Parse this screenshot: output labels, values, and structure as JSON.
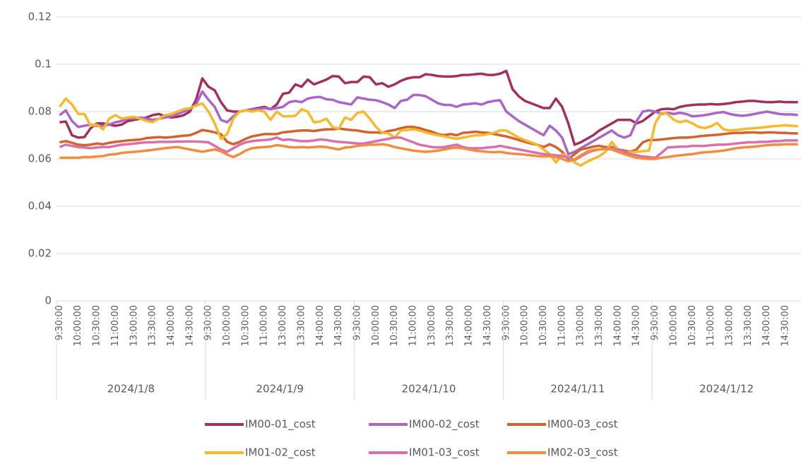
{
  "chart_data": {
    "type": "line",
    "categories": [
      "9:30:00",
      null,
      null,
      "10:00:00",
      null,
      null,
      "10:30:00",
      null,
      null,
      "11:00:00",
      null,
      null,
      "13:00:00",
      null,
      null,
      "13:30:00",
      null,
      null,
      "14:00:00",
      null,
      null,
      "14:30:00",
      null,
      null,
      "9:30:00",
      null,
      null,
      "10:00:00",
      null,
      null,
      "10:30:00",
      null,
      null,
      "11:00:00",
      null,
      null,
      "13:00:00",
      null,
      null,
      "13:30:00",
      null,
      null,
      "14:00:00",
      null,
      null,
      "14:30:00",
      null,
      null,
      "9:30:00",
      null,
      null,
      "10:00:00",
      null,
      null,
      "10:30:00",
      null,
      null,
      "11:00:00",
      null,
      null,
      "13:00:00",
      null,
      null,
      "13:30:00",
      null,
      null,
      "14:00:00",
      null,
      null,
      "14:30:00",
      null,
      null,
      "9:30:00",
      null,
      null,
      "10:00:00",
      null,
      null,
      "10:30:00",
      null,
      null,
      "11:00:00",
      null,
      null,
      "13:00:00",
      null,
      null,
      "13:30:00",
      null,
      null,
      "14:00:00",
      null,
      null,
      "14:30:00",
      null,
      null,
      "9:30:00",
      null,
      null,
      "10:00:00",
      null,
      null,
      "10:30:00",
      null,
      null,
      "11:00:00",
      null,
      null,
      "13:00:00",
      null,
      null,
      "13:30:00",
      null,
      null,
      "14:00:00",
      null,
      null,
      "14:30:00",
      null,
      null
    ],
    "groups": [
      "2024/1/8",
      "2024/1/9",
      "2024/1/10",
      "2024/1/11",
      "2024/1/12"
    ],
    "ylim": [
      0,
      0.12
    ],
    "yticks": [
      0,
      0.02,
      0.04,
      0.06,
      0.08,
      0.1,
      0.12
    ],
    "grid": true,
    "legend": "bottom",
    "series": [
      {
        "name": "IM00-01_cost",
        "color": "#a3305a",
        "values": [
          0.0755,
          0.0758,
          0.07,
          0.069,
          0.0692,
          0.073,
          0.075,
          0.075,
          0.0745,
          0.074,
          0.0745,
          0.076,
          0.0765,
          0.077,
          0.0775,
          0.0785,
          0.079,
          0.078,
          0.0775,
          0.0778,
          0.0785,
          0.08,
          0.085,
          0.094,
          0.0905,
          0.089,
          0.084,
          0.0805,
          0.08,
          0.08,
          0.0805,
          0.081,
          0.0815,
          0.082,
          0.081,
          0.083,
          0.0875,
          0.088,
          0.0915,
          0.0905,
          0.0935,
          0.0915,
          0.0925,
          0.0935,
          0.095,
          0.0948,
          0.092,
          0.0925,
          0.0925,
          0.0948,
          0.0945,
          0.0915,
          0.092,
          0.0905,
          0.0915,
          0.093,
          0.094,
          0.0945,
          0.0945,
          0.0958,
          0.0955,
          0.095,
          0.0948,
          0.0948,
          0.095,
          0.0955,
          0.0955,
          0.0958,
          0.096,
          0.0955,
          0.0955,
          0.096,
          0.0972,
          0.0895,
          0.0865,
          0.0845,
          0.0835,
          0.0825,
          0.0815,
          0.0815,
          0.0855,
          0.082,
          0.075,
          0.066,
          0.067,
          0.0685,
          0.07,
          0.072,
          0.0735,
          0.075,
          0.0765,
          0.0765,
          0.0765,
          0.075,
          0.076,
          0.078,
          0.08,
          0.081,
          0.0812,
          0.081,
          0.082,
          0.0825,
          0.0828,
          0.083,
          0.083,
          0.0832,
          0.083,
          0.0832,
          0.0835,
          0.084,
          0.0842,
          0.0845,
          0.0845,
          0.0842,
          0.084,
          0.084,
          0.0842,
          0.084,
          0.084,
          0.084
        ]
      },
      {
        "name": "IM00-02_cost",
        "color": "#a866c8",
        "values": [
          0.0785,
          0.0805,
          0.076,
          0.0735,
          0.074,
          0.0745,
          0.074,
          0.074,
          0.0745,
          0.0755,
          0.076,
          0.077,
          0.077,
          0.0775,
          0.077,
          0.0765,
          0.077,
          0.0775,
          0.078,
          0.079,
          0.08,
          0.081,
          0.083,
          0.0885,
          0.085,
          0.082,
          0.0765,
          0.0755,
          0.078,
          0.08,
          0.0805,
          0.081,
          0.081,
          0.0815,
          0.081,
          0.0815,
          0.082,
          0.084,
          0.0845,
          0.084,
          0.0855,
          0.086,
          0.0862,
          0.0852,
          0.085,
          0.084,
          0.0835,
          0.083,
          0.086,
          0.0855,
          0.085,
          0.0848,
          0.084,
          0.083,
          0.0815,
          0.0845,
          0.085,
          0.087,
          0.087,
          0.0865,
          0.085,
          0.0835,
          0.0828,
          0.0828,
          0.082,
          0.083,
          0.0832,
          0.0835,
          0.083,
          0.084,
          0.0845,
          0.0848,
          0.08,
          0.078,
          0.076,
          0.0745,
          0.073,
          0.0715,
          0.07,
          0.074,
          0.072,
          0.069,
          0.062,
          0.063,
          0.0645,
          0.066,
          0.0675,
          0.069,
          0.0705,
          0.072,
          0.07,
          0.069,
          0.07,
          0.076,
          0.08,
          0.0805,
          0.08,
          0.079,
          0.0795,
          0.079,
          0.0795,
          0.079,
          0.078,
          0.0782,
          0.0785,
          0.079,
          0.0795,
          0.0798,
          0.079,
          0.0785,
          0.0782,
          0.0785,
          0.079,
          0.0795,
          0.08,
          0.0795,
          0.079,
          0.0788,
          0.0788,
          0.0785
        ]
      },
      {
        "name": "IM00-03_cost",
        "color": "#d4612e",
        "values": [
          0.067,
          0.0675,
          0.0668,
          0.066,
          0.0658,
          0.066,
          0.0665,
          0.0662,
          0.0668,
          0.0672,
          0.0675,
          0.0678,
          0.068,
          0.0682,
          0.0688,
          0.069,
          0.0692,
          0.069,
          0.0692,
          0.0695,
          0.0698,
          0.07,
          0.071,
          0.0722,
          0.0718,
          0.0712,
          0.0705,
          0.0672,
          0.0662,
          0.0672,
          0.0685,
          0.0695,
          0.07,
          0.0705,
          0.0705,
          0.0705,
          0.0712,
          0.0715,
          0.0718,
          0.072,
          0.072,
          0.0718,
          0.0722,
          0.0725,
          0.0725,
          0.0728,
          0.0725,
          0.0722,
          0.072,
          0.0715,
          0.0712,
          0.0712,
          0.071,
          0.0718,
          0.0722,
          0.073,
          0.0735,
          0.0735,
          0.073,
          0.0722,
          0.0715,
          0.0705,
          0.07,
          0.0705,
          0.07,
          0.071,
          0.0712,
          0.0715,
          0.0712,
          0.071,
          0.0705,
          0.07,
          0.0695,
          0.0688,
          0.068,
          0.0672,
          0.0665,
          0.066,
          0.065,
          0.0662,
          0.065,
          0.063,
          0.06,
          0.062,
          0.064,
          0.0645,
          0.0652,
          0.0655,
          0.065,
          0.065,
          0.064,
          0.0635,
          0.063,
          0.064,
          0.067,
          0.068,
          0.068,
          0.0682,
          0.0685,
          0.0688,
          0.069,
          0.069,
          0.0692,
          0.0695,
          0.0698,
          0.07,
          0.0702,
          0.0705,
          0.0708,
          0.071,
          0.071,
          0.0712,
          0.0712,
          0.071,
          0.0712,
          0.0712,
          0.071,
          0.071,
          0.0708,
          0.0708
        ]
      },
      {
        "name": "IM01-02_cost",
        "color": "#f6b92c",
        "values": [
          0.082,
          0.0855,
          0.083,
          0.079,
          0.079,
          0.074,
          0.0745,
          0.0725,
          0.077,
          0.0785,
          0.077,
          0.0775,
          0.0778,
          0.077,
          0.076,
          0.0755,
          0.077,
          0.0785,
          0.079,
          0.08,
          0.081,
          0.0815,
          0.0825,
          0.0835,
          0.08,
          0.075,
          0.0685,
          0.0705,
          0.077,
          0.08,
          0.0805,
          0.08,
          0.0805,
          0.08,
          0.0765,
          0.08,
          0.078,
          0.078,
          0.0782,
          0.081,
          0.08,
          0.0755,
          0.0758,
          0.077,
          0.0735,
          0.0728,
          0.0775,
          0.0765,
          0.0795,
          0.08,
          0.077,
          0.0735,
          0.071,
          0.0708,
          0.069,
          0.072,
          0.0722,
          0.0725,
          0.072,
          0.0712,
          0.0705,
          0.07,
          0.0695,
          0.069,
          0.0685,
          0.069,
          0.0695,
          0.07,
          0.07,
          0.0705,
          0.071,
          0.072,
          0.072,
          0.0705,
          0.069,
          0.068,
          0.067,
          0.066,
          0.064,
          0.062,
          0.0585,
          0.062,
          0.061,
          0.0585,
          0.0572,
          0.0588,
          0.06,
          0.0612,
          0.063,
          0.0672,
          0.064,
          0.0625,
          0.0628,
          0.063,
          0.0632,
          0.0635,
          0.075,
          0.0795,
          0.079,
          0.0765,
          0.0755,
          0.0762,
          0.075,
          0.0735,
          0.073,
          0.0738,
          0.0752,
          0.0725,
          0.072,
          0.0722,
          0.0725,
          0.0728,
          0.073,
          0.0732,
          0.0735,
          0.0738,
          0.074,
          0.0742,
          0.074,
          0.0738
        ]
      },
      {
        "name": "IM01-03_cost",
        "color": "#d96fab",
        "values": [
          0.065,
          0.066,
          0.0655,
          0.065,
          0.0648,
          0.0645,
          0.0648,
          0.065,
          0.065,
          0.0655,
          0.066,
          0.0662,
          0.0665,
          0.0668,
          0.067,
          0.067,
          0.0672,
          0.0672,
          0.0672,
          0.0673,
          0.0673,
          0.0674,
          0.0673,
          0.0672,
          0.067,
          0.0655,
          0.064,
          0.063,
          0.0645,
          0.066,
          0.067,
          0.0675,
          0.0678,
          0.068,
          0.0682,
          0.069,
          0.068,
          0.0682,
          0.0678,
          0.0675,
          0.0675,
          0.0678,
          0.0682,
          0.068,
          0.0675,
          0.0672,
          0.067,
          0.0668,
          0.0665,
          0.0665,
          0.067,
          0.0675,
          0.068,
          0.0685,
          0.069,
          0.069,
          0.068,
          0.067,
          0.066,
          0.0655,
          0.065,
          0.0648,
          0.065,
          0.0655,
          0.066,
          0.065,
          0.0645,
          0.0645,
          0.0645,
          0.0648,
          0.065,
          0.0655,
          0.065,
          0.0645,
          0.064,
          0.0635,
          0.063,
          0.0625,
          0.062,
          0.0618,
          0.0615,
          0.0612,
          0.0605,
          0.0595,
          0.061,
          0.0625,
          0.0635,
          0.064,
          0.0642,
          0.0645,
          0.064,
          0.063,
          0.062,
          0.0615,
          0.061,
          0.0608,
          0.0605,
          0.0625,
          0.0648,
          0.065,
          0.0652,
          0.0652,
          0.0655,
          0.0655,
          0.0655,
          0.0658,
          0.066,
          0.066,
          0.0662,
          0.0665,
          0.0668,
          0.067,
          0.067,
          0.0672,
          0.0672,
          0.0675,
          0.0675,
          0.0678,
          0.0678,
          0.0678
        ]
      },
      {
        "name": "IM02-03_cost",
        "color": "#f28c3e",
        "values": [
          0.0605,
          0.0605,
          0.0605,
          0.0605,
          0.0608,
          0.0608,
          0.061,
          0.0612,
          0.0618,
          0.062,
          0.0625,
          0.0628,
          0.063,
          0.0632,
          0.0635,
          0.0638,
          0.0642,
          0.0645,
          0.0648,
          0.065,
          0.0645,
          0.064,
          0.0635,
          0.063,
          0.0635,
          0.064,
          0.0632,
          0.0618,
          0.0608,
          0.062,
          0.0635,
          0.0645,
          0.0648,
          0.065,
          0.0652,
          0.0658,
          0.0655,
          0.065,
          0.0648,
          0.065,
          0.0648,
          0.065,
          0.0652,
          0.065,
          0.0645,
          0.064,
          0.0648,
          0.065,
          0.0655,
          0.0658,
          0.066,
          0.066,
          0.0662,
          0.0658,
          0.065,
          0.0645,
          0.064,
          0.0635,
          0.0632,
          0.063,
          0.0632,
          0.0635,
          0.064,
          0.0645,
          0.0648,
          0.0645,
          0.064,
          0.0635,
          0.0632,
          0.063,
          0.0628,
          0.063,
          0.0625,
          0.0622,
          0.062,
          0.0618,
          0.0615,
          0.0612,
          0.061,
          0.0612,
          0.0608,
          0.06,
          0.059,
          0.0598,
          0.0615,
          0.063,
          0.0638,
          0.064,
          0.0642,
          0.064,
          0.063,
          0.062,
          0.0612,
          0.0605,
          0.0602,
          0.06,
          0.06,
          0.0605,
          0.0608,
          0.0612,
          0.0615,
          0.0618,
          0.062,
          0.0625,
          0.0628,
          0.063,
          0.0632,
          0.0635,
          0.064,
          0.0645,
          0.0648,
          0.065,
          0.0652,
          0.0655,
          0.0658,
          0.066,
          0.066,
          0.0662,
          0.0662,
          0.0662
        ]
      }
    ]
  }
}
